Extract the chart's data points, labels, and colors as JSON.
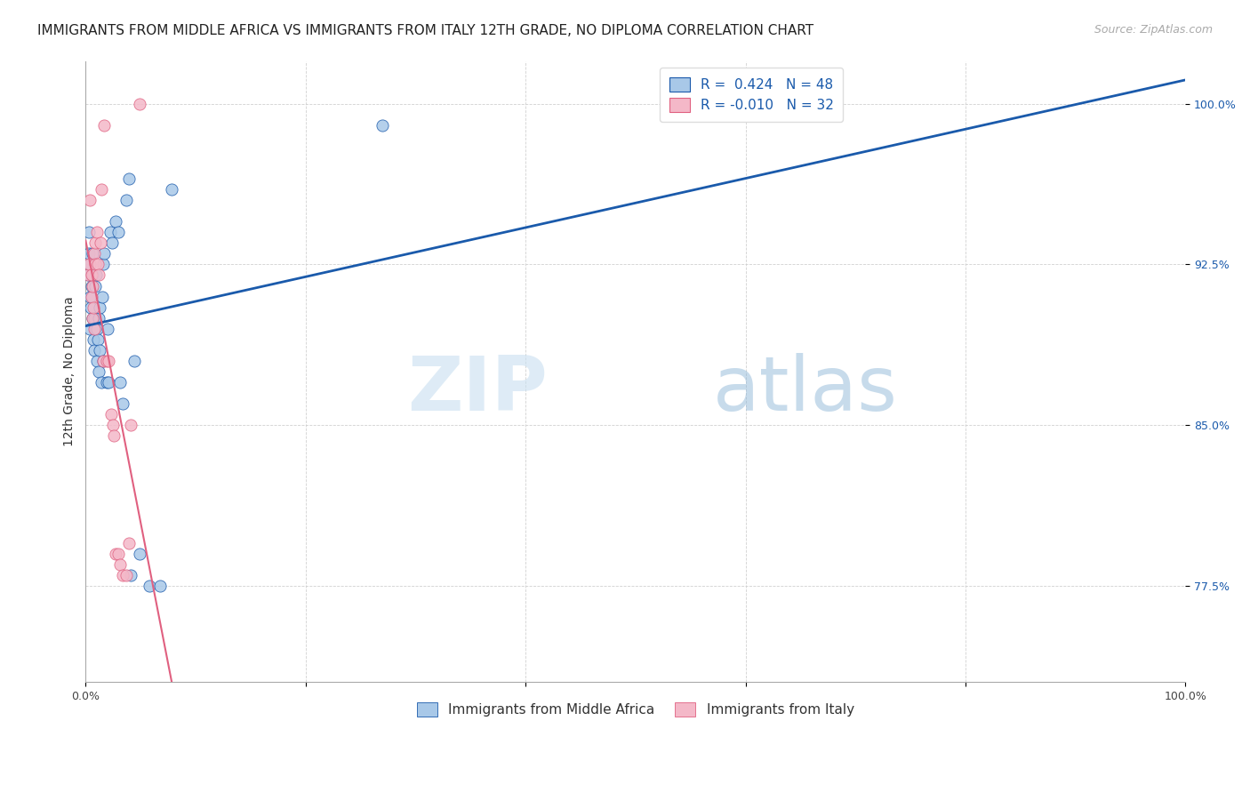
{
  "title": "IMMIGRANTS FROM MIDDLE AFRICA VS IMMIGRANTS FROM ITALY 12TH GRADE, NO DIPLOMA CORRELATION CHART",
  "source": "Source: ZipAtlas.com",
  "ylabel": "12th Grade, No Diploma",
  "R_blue": 0.424,
  "N_blue": 48,
  "R_pink": -0.01,
  "N_pink": 32,
  "blue_color": "#a8c8e8",
  "pink_color": "#f4b8c8",
  "line_blue": "#1a5aab",
  "line_pink": "#e06080",
  "background_color": "#ffffff",
  "grid_color": "#cccccc",
  "xlim": [
    0,
    100
  ],
  "ylim": [
    73,
    102
  ],
  "yticks": [
    77.5,
    85.0,
    92.5,
    100.0
  ],
  "xticks": [
    0,
    20,
    40,
    60,
    80,
    100
  ],
  "blue_scatter_x": [
    0.2,
    0.3,
    0.3,
    0.35,
    0.35,
    0.4,
    0.45,
    0.5,
    0.55,
    0.6,
    0.6,
    0.65,
    0.7,
    0.75,
    0.8,
    0.85,
    0.9,
    0.95,
    1.0,
    1.05,
    1.1,
    1.15,
    1.2,
    1.25,
    1.3,
    1.4,
    1.5,
    1.55,
    1.6,
    1.7,
    1.9,
    2.0,
    2.1,
    2.2,
    2.4,
    2.7,
    3.0,
    3.1,
    3.4,
    3.7,
    3.9,
    4.1,
    4.4,
    4.9,
    5.8,
    6.8,
    7.8,
    27.0
  ],
  "blue_scatter_y": [
    92.0,
    93.0,
    94.0,
    91.0,
    92.5,
    89.5,
    90.5,
    91.5,
    92.0,
    93.0,
    90.0,
    92.0,
    89.0,
    90.0,
    88.5,
    89.5,
    91.5,
    92.0,
    88.0,
    89.5,
    89.0,
    90.0,
    87.5,
    88.5,
    90.5,
    87.0,
    91.0,
    92.5,
    88.0,
    93.0,
    87.0,
    89.5,
    87.0,
    94.0,
    93.5,
    94.5,
    94.0,
    87.0,
    86.0,
    95.5,
    96.5,
    78.0,
    88.0,
    79.0,
    77.5,
    77.5,
    96.0,
    99.0
  ],
  "pink_scatter_x": [
    0.2,
    0.3,
    0.4,
    0.5,
    0.55,
    0.6,
    0.65,
    0.7,
    0.75,
    0.8,
    0.85,
    0.9,
    1.0,
    1.1,
    1.2,
    1.35,
    1.45,
    1.55,
    1.7,
    1.9,
    2.1,
    2.3,
    2.45,
    2.55,
    2.7,
    2.95,
    3.1,
    3.4,
    3.7,
    3.9,
    4.1,
    4.9
  ],
  "pink_scatter_y": [
    92.0,
    92.5,
    95.5,
    91.0,
    92.0,
    90.0,
    91.5,
    90.5,
    89.5,
    93.0,
    92.5,
    93.5,
    94.0,
    92.5,
    92.0,
    93.5,
    96.0,
    88.0,
    99.0,
    88.0,
    88.0,
    85.5,
    85.0,
    84.5,
    79.0,
    79.0,
    78.5,
    78.0,
    78.0,
    79.5,
    85.0,
    100.0
  ],
  "watermark_zip": "ZIP",
  "watermark_atlas": "atlas",
  "title_fontsize": 11,
  "source_fontsize": 9,
  "axis_label_fontsize": 10,
  "tick_fontsize": 9,
  "legend_fontsize": 11
}
